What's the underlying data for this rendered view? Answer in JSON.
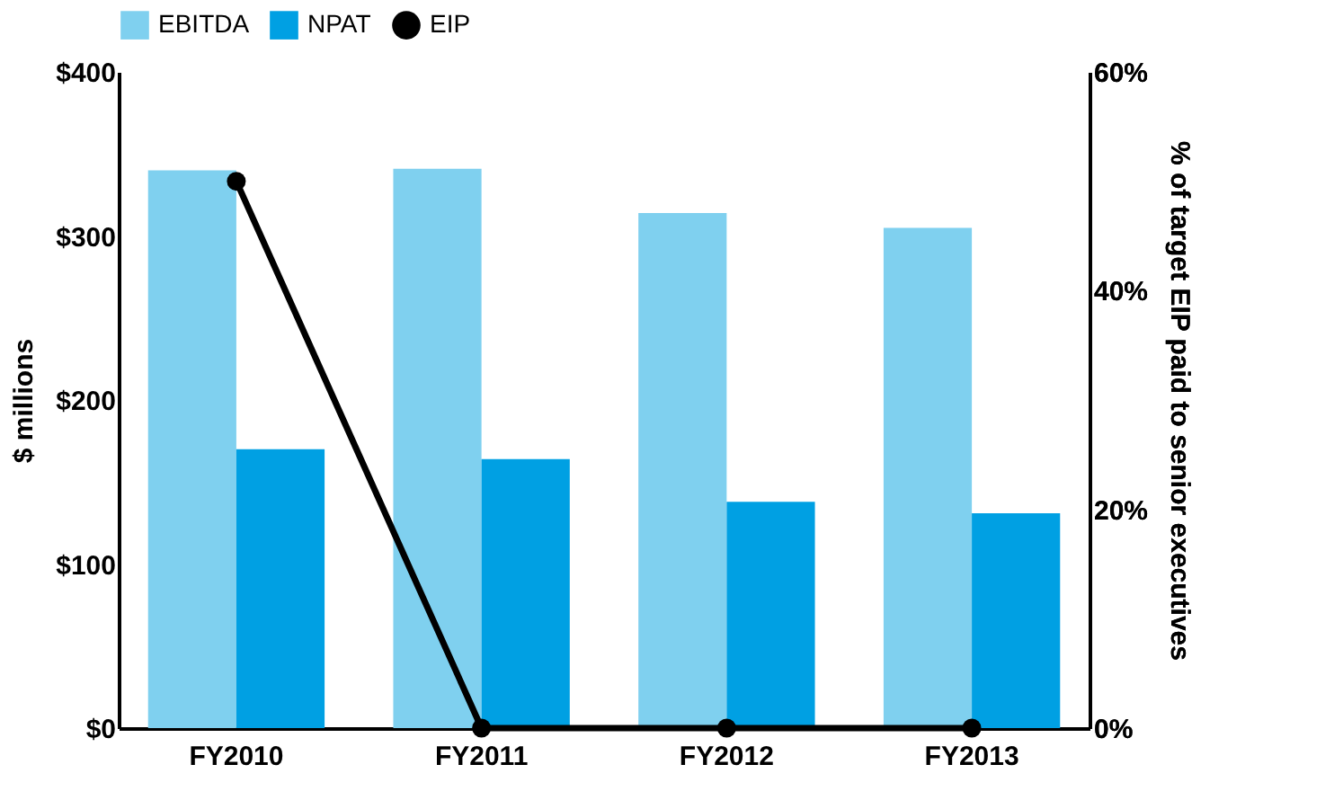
{
  "chart_data": {
    "type": "bar",
    "categories": [
      "FY2010",
      "FY2011",
      "FY2012",
      "FY2013"
    ],
    "ylabel": "$ millions",
    "y2label": "% of target EIP paid to senior executives",
    "ylim": [
      0,
      400
    ],
    "yticks": [
      {
        "value": 0,
        "label": "$0"
      },
      {
        "value": 100,
        "label": "$100"
      },
      {
        "value": 200,
        "label": "$200"
      },
      {
        "value": 300,
        "label": "$300"
      },
      {
        "value": 400,
        "label": "$400"
      }
    ],
    "y2lim": [
      0,
      60
    ],
    "y2ticks": [
      {
        "value": 0,
        "label": "0%"
      },
      {
        "value": 20,
        "label": "20%"
      },
      {
        "value": 40,
        "label": "40%"
      },
      {
        "value": 60,
        "label": "60%"
      }
    ],
    "series": [
      {
        "name": "EBITDA",
        "color": "#7fd0ef",
        "values": [
          340,
          341,
          314,
          305
        ]
      },
      {
        "name": "NPAT",
        "color": "#00a0e3",
        "values": [
          170,
          164,
          138,
          131
        ]
      },
      {
        "name": "EIP",
        "color": "#000000",
        "type": "line",
        "axis": "y2",
        "marker": "circle",
        "values": [
          50,
          0,
          0,
          0
        ]
      }
    ],
    "grid": false,
    "legend": "top"
  }
}
